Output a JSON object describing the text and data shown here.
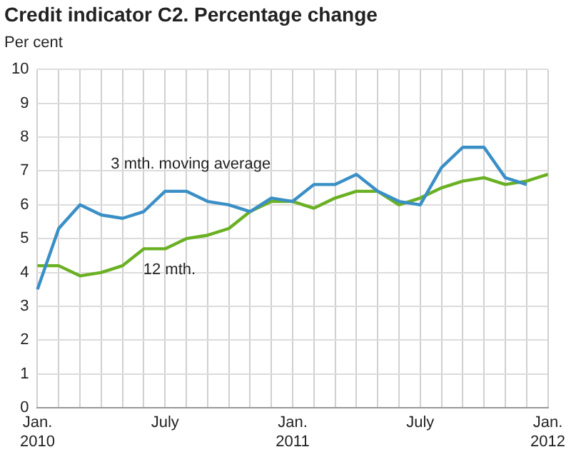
{
  "chart_data": {
    "type": "line",
    "title": "Credit indicator C2. Percentage change",
    "ylabel": "Per cent",
    "categories": [
      "Jan.\n2010",
      null,
      null,
      null,
      null,
      null,
      "July",
      null,
      null,
      null,
      null,
      null,
      "Jan.\n2011",
      null,
      null,
      null,
      null,
      null,
      "July",
      null,
      null,
      null,
      null,
      null,
      "Jan.\n2012"
    ],
    "series": [
      {
        "name": "3 mth. moving average",
        "color": "#3a8fc6",
        "values": [
          3.5,
          5.3,
          6.0,
          5.7,
          5.6,
          5.8,
          6.4,
          6.4,
          6.1,
          6.0,
          5.8,
          6.2,
          6.1,
          6.6,
          6.6,
          6.9,
          6.4,
          6.1,
          6.0,
          7.1,
          7.7,
          7.7,
          6.8,
          6.6,
          null
        ]
      },
      {
        "name": "12 mth.",
        "color": "#6ab023",
        "values": [
          4.2,
          4.2,
          3.9,
          4.0,
          4.2,
          4.7,
          4.7,
          5.0,
          5.1,
          5.3,
          5.8,
          6.1,
          6.1,
          5.9,
          6.2,
          6.4,
          6.4,
          6.0,
          6.2,
          6.5,
          6.7,
          6.8,
          6.6,
          6.7,
          6.9
        ]
      }
    ],
    "ylim": [
      0,
      10
    ],
    "yticks": [
      0,
      1,
      2,
      3,
      4,
      5,
      6,
      7,
      8,
      9,
      10
    ],
    "grid": true,
    "legend": false,
    "marker": "none",
    "line_style": "solid"
  }
}
